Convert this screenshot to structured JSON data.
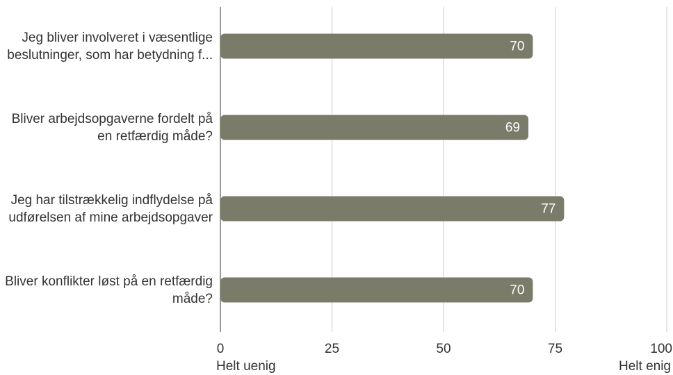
{
  "chart_data": {
    "type": "barh",
    "categories": [
      "Jeg bliver involveret i væsentlige beslutninger, som har betydning f...",
      "Bliver arbejdsopgaverne fordelt på en retfærdig måde?",
      "Jeg har tilstrækkelig indflydelse på udførelsen af mine arbejdsopgaver",
      "Bliver konflikter løst på en retfærdig måde?"
    ],
    "values": [
      70,
      69,
      77,
      70
    ],
    "color": "#7b7b69",
    "xlim": [
      0,
      100
    ],
    "xticks": [
      0,
      25,
      50,
      75,
      100
    ],
    "grid": true,
    "x_axis_end_labels": [
      "Helt uenig",
      "Helt enig"
    ]
  }
}
